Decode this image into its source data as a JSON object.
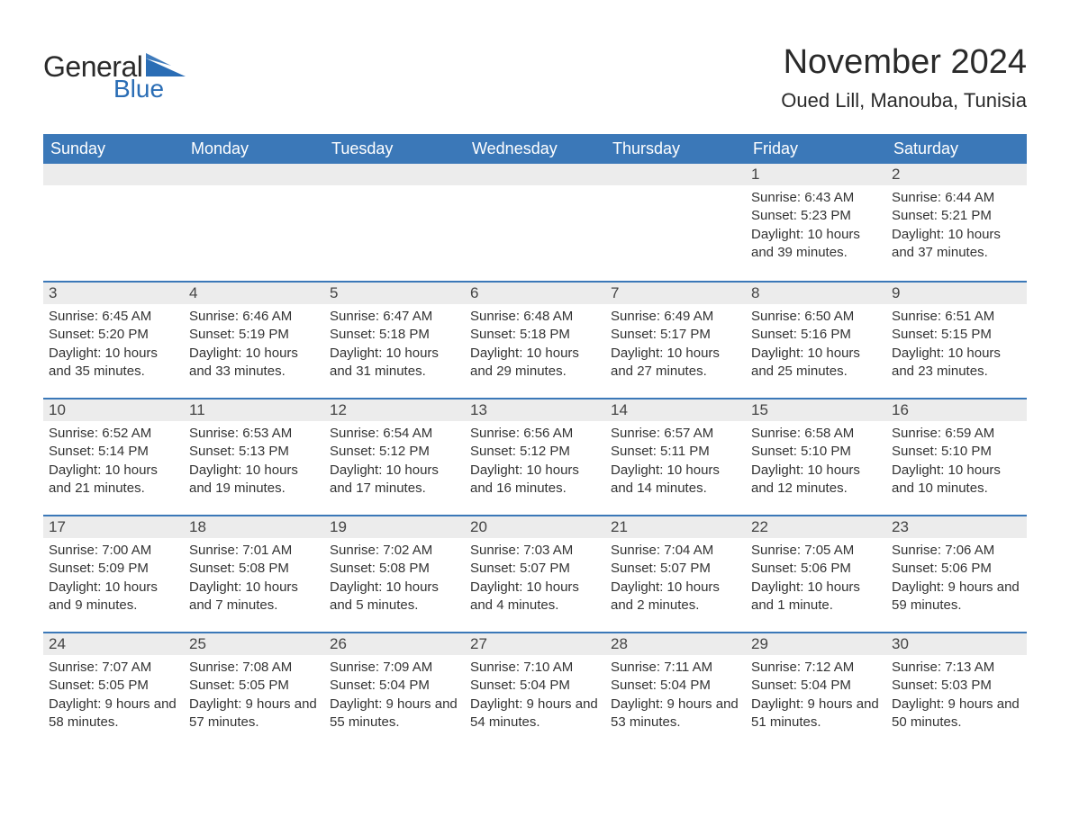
{
  "brand": {
    "word1": "General",
    "word2": "Blue",
    "flag_color": "#2a6db5",
    "word1_color": "#2a2a2a",
    "word2_color": "#2a6db5"
  },
  "title": "November 2024",
  "location": "Oued Lill, Manouba, Tunisia",
  "colors": {
    "header_bg": "#3b78b8",
    "header_text": "#ffffff",
    "daynum_bg": "#ececec",
    "daynum_text": "#444444",
    "body_text": "#333333",
    "week_border": "#3b78b8",
    "page_bg": "#ffffff"
  },
  "fonts": {
    "title_size_pt": 29,
    "location_size_pt": 17,
    "weekday_size_pt": 14,
    "daynum_size_pt": 13,
    "body_size_pt": 11
  },
  "weekdays": [
    "Sunday",
    "Monday",
    "Tuesday",
    "Wednesday",
    "Thursday",
    "Friday",
    "Saturday"
  ],
  "weeks": [
    [
      null,
      null,
      null,
      null,
      null,
      {
        "n": "1",
        "sr": "Sunrise: 6:43 AM",
        "ss": "Sunset: 5:23 PM",
        "dl": "Daylight: 10 hours and 39 minutes."
      },
      {
        "n": "2",
        "sr": "Sunrise: 6:44 AM",
        "ss": "Sunset: 5:21 PM",
        "dl": "Daylight: 10 hours and 37 minutes."
      }
    ],
    [
      {
        "n": "3",
        "sr": "Sunrise: 6:45 AM",
        "ss": "Sunset: 5:20 PM",
        "dl": "Daylight: 10 hours and 35 minutes."
      },
      {
        "n": "4",
        "sr": "Sunrise: 6:46 AM",
        "ss": "Sunset: 5:19 PM",
        "dl": "Daylight: 10 hours and 33 minutes."
      },
      {
        "n": "5",
        "sr": "Sunrise: 6:47 AM",
        "ss": "Sunset: 5:18 PM",
        "dl": "Daylight: 10 hours and 31 minutes."
      },
      {
        "n": "6",
        "sr": "Sunrise: 6:48 AM",
        "ss": "Sunset: 5:18 PM",
        "dl": "Daylight: 10 hours and 29 minutes."
      },
      {
        "n": "7",
        "sr": "Sunrise: 6:49 AM",
        "ss": "Sunset: 5:17 PM",
        "dl": "Daylight: 10 hours and 27 minutes."
      },
      {
        "n": "8",
        "sr": "Sunrise: 6:50 AM",
        "ss": "Sunset: 5:16 PM",
        "dl": "Daylight: 10 hours and 25 minutes."
      },
      {
        "n": "9",
        "sr": "Sunrise: 6:51 AM",
        "ss": "Sunset: 5:15 PM",
        "dl": "Daylight: 10 hours and 23 minutes."
      }
    ],
    [
      {
        "n": "10",
        "sr": "Sunrise: 6:52 AM",
        "ss": "Sunset: 5:14 PM",
        "dl": "Daylight: 10 hours and 21 minutes."
      },
      {
        "n": "11",
        "sr": "Sunrise: 6:53 AM",
        "ss": "Sunset: 5:13 PM",
        "dl": "Daylight: 10 hours and 19 minutes."
      },
      {
        "n": "12",
        "sr": "Sunrise: 6:54 AM",
        "ss": "Sunset: 5:12 PM",
        "dl": "Daylight: 10 hours and 17 minutes."
      },
      {
        "n": "13",
        "sr": "Sunrise: 6:56 AM",
        "ss": "Sunset: 5:12 PM",
        "dl": "Daylight: 10 hours and 16 minutes."
      },
      {
        "n": "14",
        "sr": "Sunrise: 6:57 AM",
        "ss": "Sunset: 5:11 PM",
        "dl": "Daylight: 10 hours and 14 minutes."
      },
      {
        "n": "15",
        "sr": "Sunrise: 6:58 AM",
        "ss": "Sunset: 5:10 PM",
        "dl": "Daylight: 10 hours and 12 minutes."
      },
      {
        "n": "16",
        "sr": "Sunrise: 6:59 AM",
        "ss": "Sunset: 5:10 PM",
        "dl": "Daylight: 10 hours and 10 minutes."
      }
    ],
    [
      {
        "n": "17",
        "sr": "Sunrise: 7:00 AM",
        "ss": "Sunset: 5:09 PM",
        "dl": "Daylight: 10 hours and 9 minutes."
      },
      {
        "n": "18",
        "sr": "Sunrise: 7:01 AM",
        "ss": "Sunset: 5:08 PM",
        "dl": "Daylight: 10 hours and 7 minutes."
      },
      {
        "n": "19",
        "sr": "Sunrise: 7:02 AM",
        "ss": "Sunset: 5:08 PM",
        "dl": "Daylight: 10 hours and 5 minutes."
      },
      {
        "n": "20",
        "sr": "Sunrise: 7:03 AM",
        "ss": "Sunset: 5:07 PM",
        "dl": "Daylight: 10 hours and 4 minutes."
      },
      {
        "n": "21",
        "sr": "Sunrise: 7:04 AM",
        "ss": "Sunset: 5:07 PM",
        "dl": "Daylight: 10 hours and 2 minutes."
      },
      {
        "n": "22",
        "sr": "Sunrise: 7:05 AM",
        "ss": "Sunset: 5:06 PM",
        "dl": "Daylight: 10 hours and 1 minute."
      },
      {
        "n": "23",
        "sr": "Sunrise: 7:06 AM",
        "ss": "Sunset: 5:06 PM",
        "dl": "Daylight: 9 hours and 59 minutes."
      }
    ],
    [
      {
        "n": "24",
        "sr": "Sunrise: 7:07 AM",
        "ss": "Sunset: 5:05 PM",
        "dl": "Daylight: 9 hours and 58 minutes."
      },
      {
        "n": "25",
        "sr": "Sunrise: 7:08 AM",
        "ss": "Sunset: 5:05 PM",
        "dl": "Daylight: 9 hours and 57 minutes."
      },
      {
        "n": "26",
        "sr": "Sunrise: 7:09 AM",
        "ss": "Sunset: 5:04 PM",
        "dl": "Daylight: 9 hours and 55 minutes."
      },
      {
        "n": "27",
        "sr": "Sunrise: 7:10 AM",
        "ss": "Sunset: 5:04 PM",
        "dl": "Daylight: 9 hours and 54 minutes."
      },
      {
        "n": "28",
        "sr": "Sunrise: 7:11 AM",
        "ss": "Sunset: 5:04 PM",
        "dl": "Daylight: 9 hours and 53 minutes."
      },
      {
        "n": "29",
        "sr": "Sunrise: 7:12 AM",
        "ss": "Sunset: 5:04 PM",
        "dl": "Daylight: 9 hours and 51 minutes."
      },
      {
        "n": "30",
        "sr": "Sunrise: 7:13 AM",
        "ss": "Sunset: 5:03 PM",
        "dl": "Daylight: 9 hours and 50 minutes."
      }
    ]
  ]
}
